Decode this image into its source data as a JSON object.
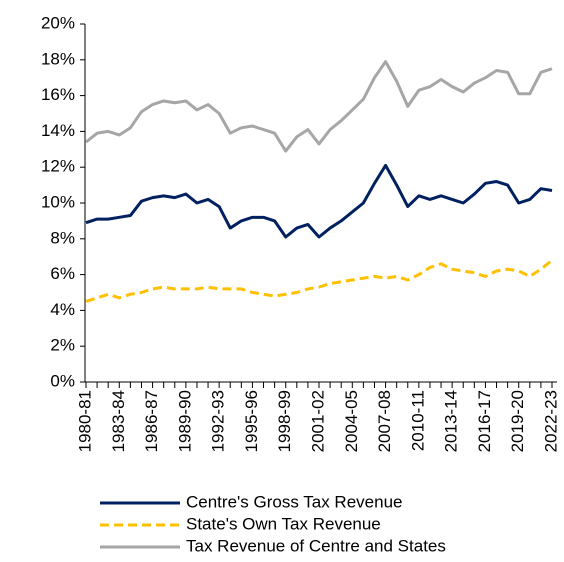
{
  "chart_data": {
    "type": "line",
    "categories": [
      "1980-81",
      null,
      null,
      "1983-84",
      null,
      null,
      "1986-87",
      null,
      null,
      "1989-90",
      null,
      null,
      "1992-93",
      null,
      null,
      "1995-96",
      null,
      null,
      "1998-99",
      null,
      null,
      "2001-02",
      null,
      null,
      "2004-05",
      null,
      null,
      "2007-08",
      null,
      null,
      "2010-11",
      null,
      null,
      "2013-14",
      null,
      null,
      "2016-17",
      null,
      null,
      "2019-20",
      null,
      null,
      "2022-23"
    ],
    "series": [
      {
        "name": "Centre's Gross Tax Revenue",
        "color": "#002060",
        "dash": false,
        "values": [
          8.9,
          9.1,
          9.1,
          9.2,
          9.3,
          10.1,
          10.3,
          10.4,
          10.3,
          10.5,
          10.0,
          10.2,
          9.8,
          8.6,
          9.0,
          9.2,
          9.2,
          9.0,
          8.1,
          8.6,
          8.8,
          8.1,
          8.6,
          9.0,
          9.5,
          10.0,
          11.1,
          12.1,
          11.0,
          9.8,
          10.4,
          10.2,
          10.4,
          10.2,
          10.0,
          10.5,
          11.1,
          11.2,
          11.0,
          10.0,
          10.2,
          10.8,
          10.7
        ]
      },
      {
        "name": "State's Own Tax Revenue",
        "color": "#ffc000",
        "dash": true,
        "values": [
          4.5,
          4.7,
          4.9,
          4.7,
          4.9,
          5.0,
          5.2,
          5.3,
          5.2,
          5.2,
          5.2,
          5.3,
          5.2,
          5.2,
          5.2,
          5.0,
          4.9,
          4.8,
          4.9,
          5.0,
          5.2,
          5.3,
          5.5,
          5.6,
          5.7,
          5.8,
          5.9,
          5.8,
          5.9,
          5.7,
          6.0,
          6.4,
          6.6,
          6.3,
          6.2,
          6.1,
          5.9,
          6.2,
          6.3,
          6.2,
          5.9,
          6.3,
          6.8
        ]
      },
      {
        "name": "Tax Revenue of Centre and States",
        "color": "#a6a6a6",
        "dash": false,
        "values": [
          13.4,
          13.9,
          14.0,
          13.8,
          14.2,
          15.1,
          15.5,
          15.7,
          15.6,
          15.7,
          15.2,
          15.5,
          15.0,
          13.9,
          14.2,
          14.3,
          14.1,
          13.9,
          12.9,
          13.7,
          14.1,
          13.3,
          14.1,
          14.6,
          15.2,
          15.8,
          17.0,
          17.9,
          16.8,
          15.4,
          16.3,
          16.5,
          16.9,
          16.5,
          16.2,
          16.7,
          17.0,
          17.4,
          17.3,
          16.1,
          16.1,
          17.3,
          17.5
        ]
      }
    ],
    "ylim": [
      0,
      20
    ],
    "yticks": [
      {
        "value": 0,
        "label": "0%"
      },
      {
        "value": 2,
        "label": "2%"
      },
      {
        "value": 4,
        "label": "4%"
      },
      {
        "value": 6,
        "label": "6%"
      },
      {
        "value": 8,
        "label": "8%"
      },
      {
        "value": 10,
        "label": "10%"
      },
      {
        "value": 12,
        "label": "12%"
      },
      {
        "value": 14,
        "label": "14%"
      },
      {
        "value": 16,
        "label": "16%"
      },
      {
        "value": 18,
        "label": "18%"
      },
      {
        "value": 20,
        "label": "20%"
      }
    ],
    "grid": false,
    "legend": "bottom"
  }
}
